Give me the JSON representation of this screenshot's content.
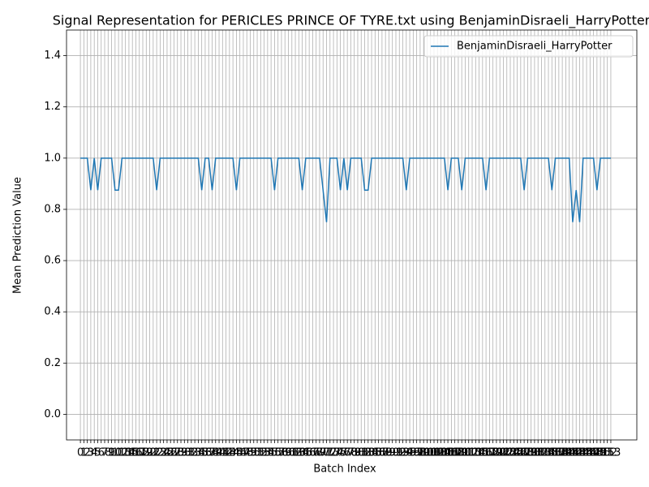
{
  "chart_data": {
    "type": "line",
    "title": "Signal Representation for PERICLES PRINCE OF TYRE.txt using BenjaminDisraeli_HarryPotter",
    "xlabel": "Batch Index",
    "ylabel": "Mean Prediction Value",
    "x": [
      0,
      1,
      2,
      3,
      4,
      5,
      6,
      7,
      8,
      9,
      10,
      11,
      12,
      13,
      14,
      15,
      16,
      17,
      18,
      19,
      20,
      21,
      22,
      23,
      24,
      25,
      26,
      27,
      28,
      29,
      30,
      31,
      32,
      33,
      34,
      35,
      36,
      37,
      38,
      39,
      40,
      41,
      42,
      43,
      44,
      45,
      46,
      47,
      48,
      49,
      50,
      51,
      52,
      53,
      54,
      55,
      56,
      57,
      58,
      59,
      60,
      61,
      62,
      63,
      64,
      65,
      66,
      67,
      68,
      69,
      70,
      71,
      72,
      73,
      74,
      75,
      76,
      77,
      78,
      79,
      80,
      81,
      82,
      83,
      84,
      85,
      86,
      87,
      88,
      89,
      90,
      91,
      92,
      93,
      94,
      95,
      96,
      97,
      98,
      99,
      100,
      101,
      102,
      103,
      104,
      105,
      106,
      107,
      108,
      109,
      110,
      111,
      112,
      113,
      114,
      115,
      116,
      117,
      118,
      119,
      120,
      121,
      122,
      123,
      124,
      125,
      126,
      127,
      128,
      129,
      130,
      131,
      132,
      133,
      134,
      135,
      136,
      137,
      138,
      139,
      140,
      141,
      142,
      143,
      144,
      145,
      146,
      147,
      148,
      149,
      150,
      151,
      152,
      153
    ],
    "series": [
      {
        "name": "BenjaminDisraeli_HarryPotter",
        "color": "#1f77b4",
        "values": [
          1,
          1,
          1,
          0.875,
          1,
          0.875,
          1,
          1,
          1,
          1,
          0.875,
          0.875,
          1,
          1,
          1,
          1,
          1,
          1,
          1,
          1,
          1,
          1,
          0.875,
          1,
          1,
          1,
          1,
          1,
          1,
          1,
          1,
          1,
          1,
          1,
          1,
          0.875,
          1,
          1,
          0.875,
          1,
          1,
          1,
          1,
          1,
          1,
          0.875,
          1,
          1,
          1,
          1,
          1,
          1,
          1,
          1,
          1,
          1,
          0.875,
          1,
          1,
          1,
          1,
          1,
          1,
          1,
          0.875,
          1,
          1,
          1,
          1,
          1,
          0.875,
          0.75,
          1,
          1,
          1,
          0.875,
          1,
          0.875,
          1,
          1,
          1,
          1,
          0.875,
          0.875,
          1,
          1,
          1,
          1,
          1,
          1,
          1,
          1,
          1,
          1,
          0.875,
          1,
          1,
          1,
          1,
          1,
          1,
          1,
          1,
          1,
          1,
          1,
          0.875,
          1,
          1,
          1,
          0.875,
          1,
          1,
          1,
          1,
          1,
          1,
          0.875,
          1,
          1,
          1,
          1,
          1,
          1,
          1,
          1,
          1,
          1,
          0.875,
          1,
          1,
          1,
          1,
          1,
          1,
          1,
          0.875,
          1,
          1,
          1,
          1,
          1,
          0.75,
          0.875,
          0.75,
          1,
          1,
          1,
          1,
          0.875,
          1,
          1,
          1,
          1
        ]
      }
    ],
    "xlim": [
      -4,
      160.5
    ],
    "xticks": [
      0,
      1,
      2,
      3,
      4,
      5,
      6,
      7,
      8,
      9,
      10,
      11,
      12,
      13,
      14,
      15,
      16,
      17,
      18,
      19,
      20,
      21,
      22,
      23,
      24,
      25,
      26,
      27,
      28,
      29,
      30,
      31,
      32,
      33,
      34,
      35,
      36,
      37,
      38,
      39,
      40,
      41,
      42,
      43,
      44,
      45,
      46,
      47,
      48,
      49,
      50,
      51,
      52,
      53,
      54,
      55,
      56,
      57,
      58,
      59,
      60,
      61,
      62,
      63,
      64,
      65,
      66,
      67,
      68,
      69,
      70,
      71,
      72,
      73,
      74,
      75,
      76,
      77,
      78,
      79,
      80,
      81,
      82,
      83,
      84,
      85,
      86,
      87,
      88,
      89,
      90,
      91,
      92,
      93,
      94,
      95,
      96,
      97,
      98,
      99,
      100,
      101,
      102,
      103,
      104,
      105,
      106,
      107,
      108,
      109,
      110,
      111,
      112,
      113,
      114,
      115,
      116,
      117,
      118,
      119,
      120,
      121,
      122,
      123,
      124,
      125,
      126,
      127,
      128,
      129,
      130,
      131,
      132,
      133,
      134,
      135,
      136,
      137,
      138,
      139,
      140,
      141,
      142,
      143,
      144,
      145,
      146,
      147,
      148,
      149,
      150,
      151,
      152,
      153
    ],
    "ylim": [
      -0.1,
      1.5
    ],
    "yticks": [
      {
        "value": 0,
        "label": "0.0"
      },
      0.2,
      0.4,
      0.6,
      0.8,
      {
        "value": 1,
        "label": "1.0"
      },
      1.2,
      1.4
    ],
    "grid": true,
    "legend": "upper right"
  }
}
